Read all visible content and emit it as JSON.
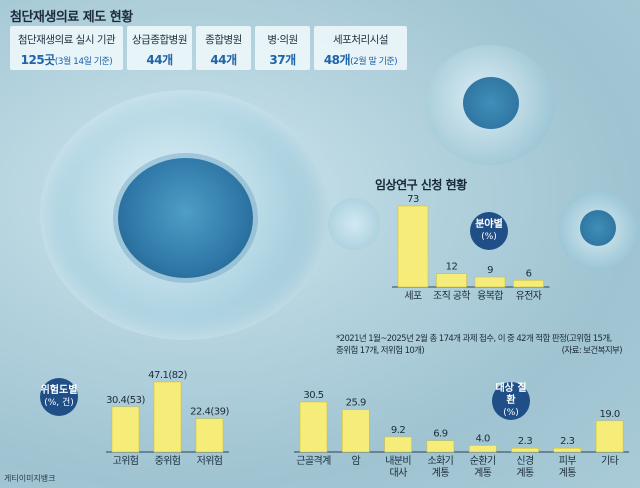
{
  "header": {
    "title": "첨단재생의료 제도 현황",
    "stats": [
      {
        "label": "첨단재생의료 실시 기관",
        "value": "125곳",
        "note": "(3월 14일 기준)"
      },
      {
        "label": "상급종합병원",
        "value": "44개",
        "note": ""
      },
      {
        "label": "종합병원",
        "value": "44개",
        "note": ""
      },
      {
        "label": "병·의원",
        "value": "37개",
        "note": ""
      },
      {
        "label": "세포처리시설",
        "value": "48개",
        "note": "(2월 말 기준)"
      }
    ]
  },
  "clinical": {
    "title": "임상연구 신청 현황",
    "badge_main": "분야별",
    "badge_unit": "(%)",
    "footnote_line1": "*2021년 1월~2025년 2월 총 174개 과제 접수, 이 중 42개 적합 판정(고위험 15개,",
    "footnote_line2": "중위험 17개, 저위험 10개)",
    "source": "(자료: 보건복지부)"
  },
  "risk": {
    "badge_main": "위험도별",
    "badge_unit": "(%, 건)"
  },
  "disease": {
    "badge_main": "대상 질환",
    "badge_unit": "(%)"
  },
  "credit": "게티이미지뱅크",
  "colors": {
    "bar": "#f6ec7a",
    "bar_stroke": "#c9bd3a",
    "badge": "#1f4f86"
  },
  "chart_data": [
    {
      "type": "bar",
      "title": "분야별",
      "categories": [
        "세포",
        "조직 공학",
        "융복합",
        "유전자"
      ],
      "values": [
        73,
        12,
        9,
        6
      ],
      "labels": [
        "73",
        "12",
        "9",
        "6"
      ],
      "ylabel": "%"
    },
    {
      "type": "bar",
      "title": "위험도별",
      "categories": [
        "고위험",
        "중위험",
        "저위험"
      ],
      "values": [
        30.4,
        47.1,
        22.4
      ],
      "counts": [
        53,
        82,
        39
      ],
      "labels": [
        "30.4(53)",
        "47.1(82)",
        "22.4(39)"
      ],
      "ylabel": "%, 건"
    },
    {
      "type": "bar",
      "title": "대상 질환",
      "categories": [
        "근골격계",
        "암",
        "내분비 대사",
        "소화기 계통",
        "순환기 계통",
        "신경 계통",
        "피부 계통",
        "기타"
      ],
      "values": [
        30.5,
        25.9,
        9.2,
        6.9,
        4.0,
        2.3,
        2.3,
        19.0
      ],
      "labels": [
        "30.5",
        "25.9",
        "9.2",
        "6.9",
        "4.0",
        "2.3",
        "2.3",
        "19.0"
      ],
      "ylabel": "%"
    }
  ]
}
